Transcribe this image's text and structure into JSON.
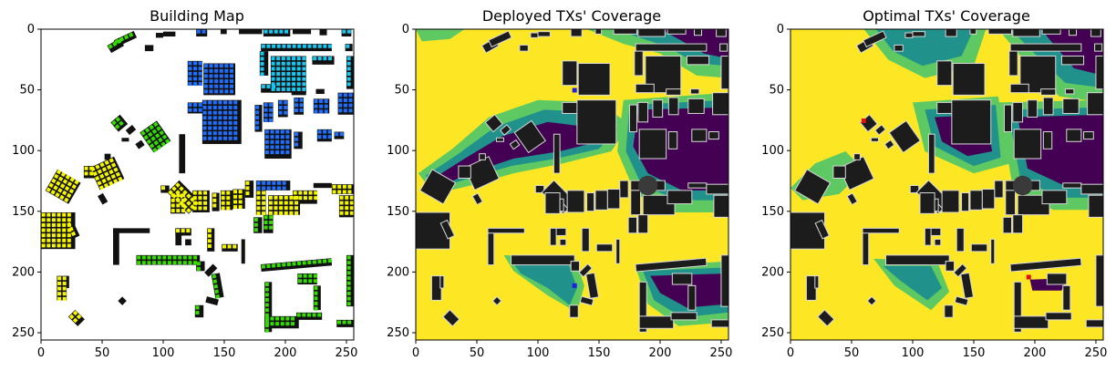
{
  "chart_data": [
    {
      "type": "heatmap",
      "title": "Building Map",
      "xlim": [
        0,
        256
      ],
      "ylim": [
        256,
        0
      ],
      "xticks": [
        0,
        50,
        100,
        150,
        200,
        250
      ],
      "yticks": [
        0,
        50,
        100,
        150,
        200,
        250
      ],
      "xtick_labels": [
        "0",
        "50",
        "100",
        "150",
        "200",
        "250"
      ],
      "ytick_labels": [
        "0",
        "50",
        "100",
        "150",
        "200",
        "250"
      ]
    },
    {
      "type": "heatmap",
      "title": "Deployed TXs' Coverage",
      "xlim": [
        0,
        256
      ],
      "ylim": [
        256,
        0
      ],
      "xticks": [
        0,
        50,
        100,
        150,
        200,
        250
      ],
      "yticks": [
        0,
        50,
        100,
        150,
        200,
        250
      ],
      "xtick_labels": [
        "0",
        "50",
        "100",
        "150",
        "200",
        "250"
      ],
      "ytick_labels": [
        "0",
        "50",
        "100",
        "150",
        "200",
        "250"
      ]
    },
    {
      "type": "heatmap",
      "title": "Optimal TXs' Coverage",
      "xlim": [
        0,
        256
      ],
      "ylim": [
        256,
        0
      ],
      "xticks": [
        0,
        50,
        100,
        150,
        200,
        250
      ],
      "yticks": [
        0,
        50,
        100,
        150,
        200,
        250
      ],
      "xtick_labels": [
        "0",
        "50",
        "100",
        "150",
        "200",
        "250"
      ],
      "ytick_labels": [
        "0",
        "50",
        "100",
        "150",
        "200",
        "250"
      ]
    }
  ],
  "colors": {
    "building": "#111111",
    "building_fill": "#1c1c1c",
    "coverage_high": "#fde725",
    "coverage_mid_high": "#5ec962",
    "coverage_mid": "#21918c",
    "coverage_low": "#440154",
    "tx_deployed": "#1f1fe0",
    "tx_optimal": "#e01010",
    "dot_yellow": "#f5f500",
    "dot_green": "#33dd00",
    "dot_blue": "#1f6fff",
    "dot_cyan": "#17c8f0"
  }
}
